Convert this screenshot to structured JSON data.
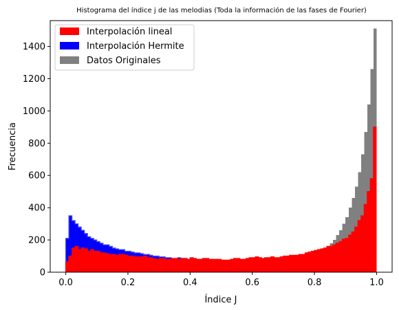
{
  "chart_data": {
    "type": "histogram",
    "title": "Histograma del índice j de las melodias (Toda la información de las fases de Fourier)",
    "xlabel": "Índice J",
    "ylabel": "Frecuencia",
    "xlim": [
      -0.05,
      1.05
    ],
    "ylim": [
      0,
      1560
    ],
    "x_ticks": [
      0.0,
      0.2,
      0.4,
      0.6,
      0.8,
      1.0
    ],
    "x_tick_labels": [
      "0.0",
      "0.2",
      "0.4",
      "0.6",
      "0.8",
      "1.0"
    ],
    "y_ticks": [
      0,
      200,
      400,
      600,
      800,
      1000,
      1200,
      1400
    ],
    "y_tick_labels": [
      "0",
      "200",
      "400",
      "600",
      "800",
      "1000",
      "1200",
      "1400"
    ],
    "bin_start": 0.0,
    "bin_width": 0.01,
    "legend_position": "upper-left",
    "series": [
      {
        "name": "Interpolación lineal",
        "style": "step-filled",
        "color": "#ff0000",
        "edge_color": "#ff0000",
        "values": [
          65,
          100,
          150,
          160,
          140,
          150,
          145,
          130,
          140,
          130,
          130,
          120,
          120,
          115,
          110,
          110,
          105,
          110,
          110,
          105,
          100,
          100,
          95,
          95,
          95,
          100,
          90,
          90,
          85,
          80,
          85,
          85,
          80,
          80,
          85,
          85,
          80,
          85,
          85,
          80,
          90,
          85,
          80,
          80,
          85,
          85,
          80,
          80,
          80,
          80,
          75,
          75,
          75,
          80,
          85,
          85,
          80,
          80,
          85,
          90,
          90,
          95,
          90,
          85,
          90,
          90,
          95,
          90,
          90,
          95,
          100,
          100,
          105,
          105,
          105,
          110,
          110,
          120,
          125,
          130,
          135,
          140,
          145,
          150,
          160,
          160,
          170,
          180,
          190,
          205,
          210,
          230,
          250,
          280,
          320,
          350,
          420,
          500,
          580,
          900
        ]
      },
      {
        "name": "Interpolación Hermite",
        "style": "step-filled",
        "color": "#0000ff",
        "edge_color": "#5050ee",
        "values": [
          210,
          350,
          320,
          300,
          280,
          260,
          240,
          220,
          210,
          200,
          190,
          180,
          170,
          170,
          160,
          150,
          145,
          140,
          140,
          130,
          130,
          125,
          120,
          120,
          115,
          110,
          110,
          105,
          100,
          100,
          95,
          95,
          90,
          90,
          85,
          85,
          90,
          85,
          85,
          80,
          80,
          85,
          80,
          80,
          80,
          80,
          75,
          75,
          70,
          70,
          65,
          70,
          70,
          65,
          65,
          65,
          60,
          60,
          55,
          60,
          55,
          55,
          55,
          50,
          50,
          50,
          55,
          55,
          55,
          60,
          60,
          55,
          55,
          50,
          50,
          50,
          50,
          50,
          55,
          60,
          60,
          65,
          70,
          75,
          80,
          80,
          90,
          95,
          100,
          110,
          120,
          140,
          160,
          200,
          250,
          300,
          350,
          400,
          530,
          900
        ]
      },
      {
        "name": "Datos Originales",
        "style": "filled",
        "color": "#808080",
        "edge_color": "#808080",
        "values": [
          0,
          0,
          0,
          0,
          0,
          0,
          0,
          0,
          0,
          0,
          0,
          0,
          0,
          5,
          5,
          5,
          5,
          5,
          5,
          5,
          5,
          5,
          5,
          5,
          5,
          5,
          5,
          5,
          5,
          5,
          5,
          5,
          5,
          5,
          5,
          5,
          5,
          5,
          5,
          5,
          5,
          5,
          5,
          5,
          5,
          5,
          5,
          5,
          5,
          5,
          5,
          5,
          5,
          5,
          5,
          5,
          5,
          5,
          5,
          5,
          5,
          5,
          10,
          10,
          10,
          15,
          15,
          20,
          20,
          25,
          30,
          35,
          40,
          50,
          55,
          60,
          60,
          70,
          80,
          90,
          100,
          110,
          120,
          140,
          160,
          180,
          200,
          230,
          260,
          300,
          340,
          400,
          460,
          530,
          620,
          730,
          870,
          1040,
          1260,
          1510
        ]
      }
    ]
  }
}
